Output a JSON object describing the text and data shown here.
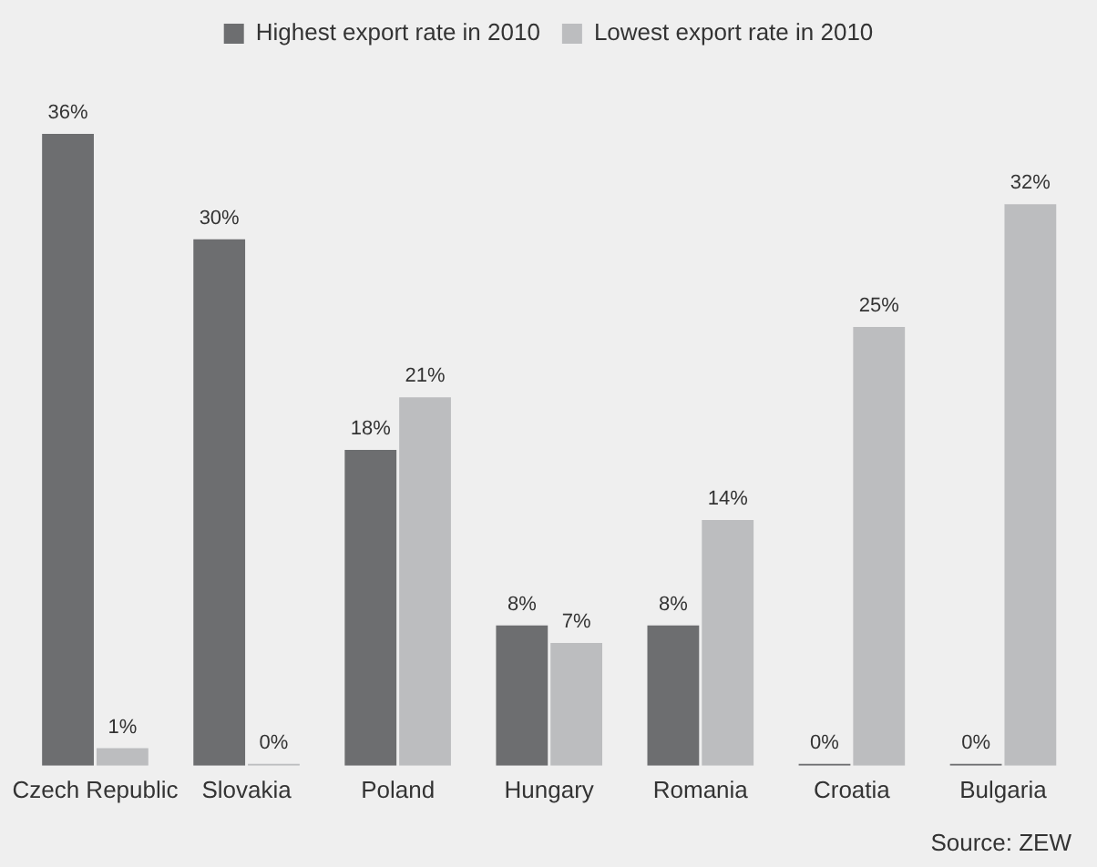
{
  "chart_data": {
    "type": "bar",
    "categories": [
      "Czech Republic",
      "Slovakia",
      "Poland",
      "Hungary",
      "Romania",
      "Croatia",
      "Bulgaria"
    ],
    "series": [
      {
        "name": "Highest export rate in 2010",
        "color": "#6d6e70",
        "values": [
          36,
          30,
          18,
          8,
          8,
          0,
          0
        ],
        "value_labels": [
          "36%",
          "30%",
          "18%",
          "8%",
          "8%",
          "0%",
          "0%"
        ]
      },
      {
        "name": "Lowest export rate in 2010",
        "color": "#bcbdbf",
        "values": [
          1,
          0,
          21,
          7,
          14,
          25,
          32
        ],
        "value_labels": [
          "1%",
          "0%",
          "21%",
          "7%",
          "14%",
          "25%",
          "32%"
        ]
      }
    ],
    "legend": "top",
    "grid": false,
    "annotations": [
      "Source: ZEW"
    ]
  }
}
